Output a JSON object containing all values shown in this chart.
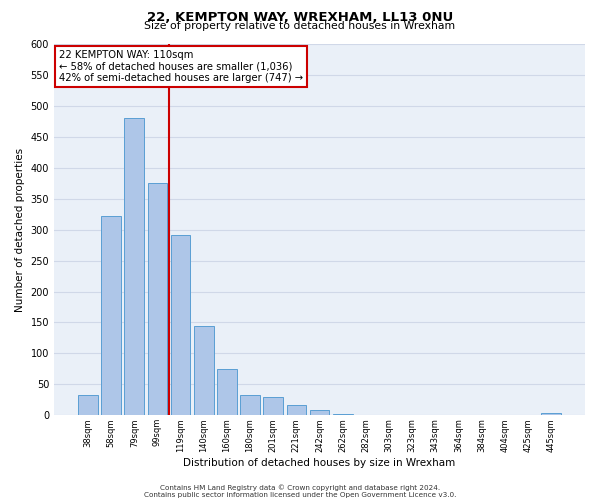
{
  "title": "22, KEMPTON WAY, WREXHAM, LL13 0NU",
  "subtitle": "Size of property relative to detached houses in Wrexham",
  "xlabel": "Distribution of detached houses by size in Wrexham",
  "ylabel": "Number of detached properties",
  "bar_labels": [
    "38sqm",
    "58sqm",
    "79sqm",
    "99sqm",
    "119sqm",
    "140sqm",
    "160sqm",
    "180sqm",
    "201sqm",
    "221sqm",
    "242sqm",
    "262sqm",
    "282sqm",
    "303sqm",
    "323sqm",
    "343sqm",
    "364sqm",
    "384sqm",
    "404sqm",
    "425sqm",
    "445sqm"
  ],
  "bar_values": [
    32,
    322,
    481,
    375,
    291,
    144,
    75,
    32,
    29,
    17,
    8,
    2,
    1,
    0,
    0,
    0,
    0,
    0,
    0,
    0,
    3
  ],
  "bar_color": "#aec6e8",
  "bar_edge_color": "#5a9fd4",
  "vline_x": 3.5,
  "vline_color": "#cc0000",
  "annotation_title": "22 KEMPTON WAY: 110sqm",
  "annotation_line1": "← 58% of detached houses are smaller (1,036)",
  "annotation_line2": "42% of semi-detached houses are larger (747) →",
  "annotation_box_color": "#ffffff",
  "annotation_box_edge": "#cc0000",
  "ylim": [
    0,
    600
  ],
  "yticks": [
    0,
    50,
    100,
    150,
    200,
    250,
    300,
    350,
    400,
    450,
    500,
    550,
    600
  ],
  "grid_color": "#d0d8e8",
  "background_color": "#eaf0f8",
  "footer1": "Contains HM Land Registry data © Crown copyright and database right 2024.",
  "footer2": "Contains public sector information licensed under the Open Government Licence v3.0."
}
